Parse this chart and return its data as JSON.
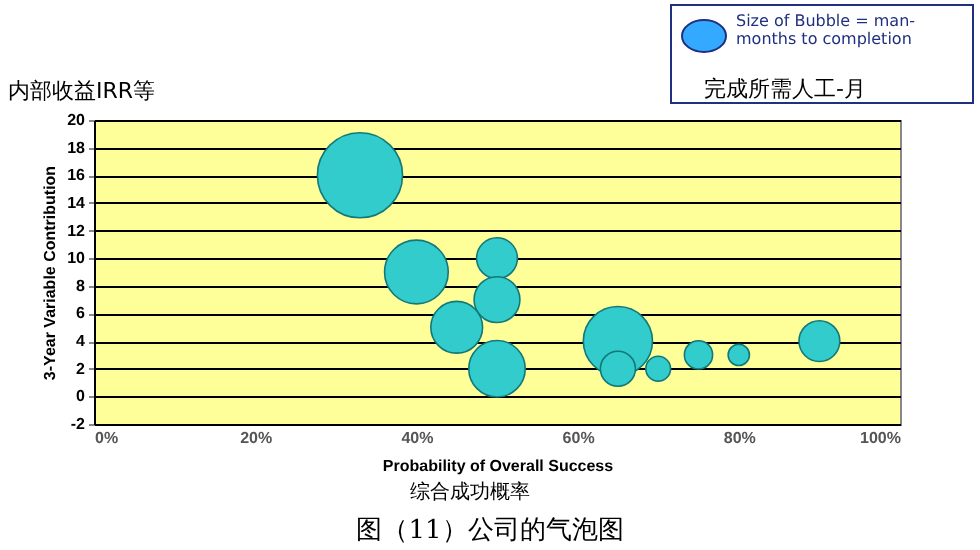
{
  "chart_data": {
    "type": "bubble",
    "title": "图（11）公司的气泡图",
    "xlabel": "Probability of Overall Success",
    "ylabel": "3-Year Variable Contribution",
    "annotations": [
      "内部收益IRR等",
      "综合成功概率",
      "Size of Bubble = man-months to completion",
      "完成所需人工-月"
    ],
    "x": [
      33,
      40,
      50,
      50,
      45,
      50,
      65,
      65,
      70,
      75,
      80,
      90
    ],
    "series": [
      {
        "color": "#33cccc",
        "values": [
          16,
          9,
          10,
          7,
          5,
          2,
          4,
          2,
          2,
          3,
          3,
          4
        ],
        "sizes": [
          1,
          0.56,
          0.23,
          0.29,
          0.37,
          0.44,
          0.66,
          0.17,
          0.085,
          0.11,
          0.0625,
          0.23
        ]
      }
    ],
    "xlim": [
      0,
      100
    ],
    "xticks": [
      {
        "value": 0,
        "label": "0%"
      },
      {
        "value": 20,
        "label": "20%"
      },
      {
        "value": 40,
        "label": "40%"
      },
      {
        "value": 60,
        "label": "60%"
      },
      {
        "value": 80,
        "label": "80%"
      },
      {
        "value": 100,
        "label": "100%"
      }
    ],
    "ylim": [
      -2,
      20
    ],
    "yticks": [
      -2,
      0,
      2,
      4,
      6,
      8,
      10,
      12,
      14,
      16,
      18,
      20
    ],
    "grid": "y"
  }
}
